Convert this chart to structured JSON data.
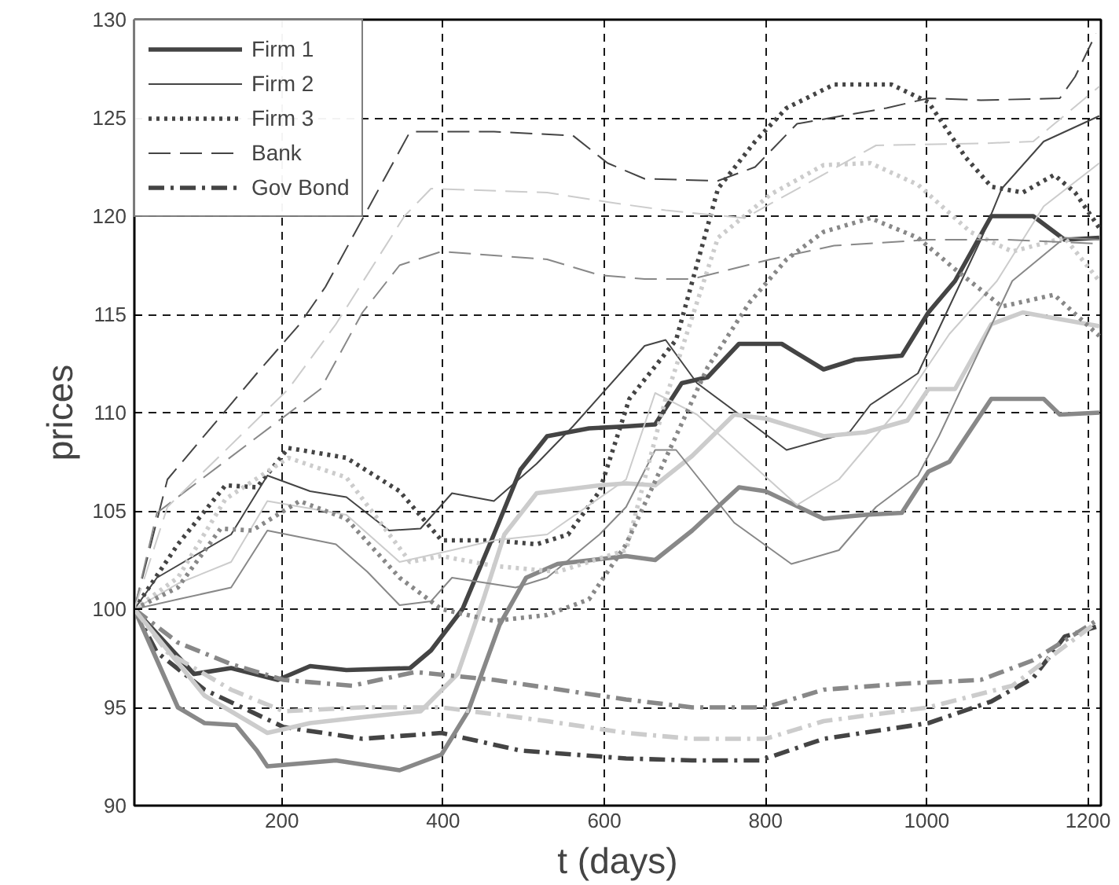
{
  "chart_data": {
    "type": "line",
    "xlabel": "t (days)",
    "ylabel": "prices",
    "xlim": [
      17,
      1216
    ],
    "ylim": [
      90,
      130
    ],
    "xticks": [
      200,
      400,
      600,
      800,
      1000,
      1200
    ],
    "yticks": [
      90,
      95,
      100,
      105,
      110,
      115,
      120,
      125,
      130
    ],
    "grid": true,
    "legend": "top left",
    "marker": "none",
    "series": [
      {
        "name": "Firm 1",
        "color": "#444444",
        "line_style": "solid",
        "x": [
          17,
          91,
          137,
          195,
          235,
          280,
          359,
          385,
          424,
          463,
          496,
          529,
          581,
          627,
          663,
          696,
          728,
          767,
          820,
          872,
          911,
          969,
          1002,
          1035,
          1080,
          1132,
          1171,
          1214
        ],
        "values": [
          100,
          96.7,
          97.0,
          96.4,
          97.1,
          96.9,
          97.0,
          97.9,
          100,
          103.8,
          107.1,
          108.8,
          109.2,
          109.3,
          109.4,
          111.5,
          111.8,
          113.5,
          113.5,
          112.2,
          112.7,
          112.9,
          115.1,
          116.7,
          120,
          120,
          118.8,
          118.9
        ]
      },
      {
        "name": "Firm 2",
        "color": "#444444",
        "line_style": "solid",
        "x": [
          17,
          45,
          137,
          182,
          235,
          280,
          333,
          372,
          411,
          463,
          516,
          561,
          650,
          676,
          715,
          761,
          826,
          904,
          930,
          989,
          1067,
          1093,
          1145,
          1214
        ],
        "values": [
          100,
          101.6,
          103.8,
          106.8,
          106,
          105.7,
          104,
          104.1,
          105.9,
          105.5,
          107.4,
          109.3,
          113.4,
          113.7,
          111.5,
          110.1,
          108.1,
          109,
          110.4,
          112,
          118.8,
          121.4,
          123.8,
          125.1
        ]
      },
      {
        "name": "Firm 3",
        "color": "#444444",
        "line_style": "dotted",
        "x": [
          17,
          71,
          130,
          169,
          208,
          280,
          346,
          398,
          463,
          516,
          555,
          594,
          631,
          689,
          741,
          787,
          826,
          885,
          956,
          1002,
          1048,
          1080,
          1119,
          1158,
          1184,
          1214
        ],
        "values": [
          100,
          103.3,
          106.3,
          106.2,
          108.2,
          107.7,
          106,
          103.5,
          103.5,
          103.3,
          103.8,
          106,
          110.7,
          113.7,
          121.4,
          123.8,
          125.5,
          126.7,
          126.7,
          125.8,
          123,
          121.5,
          121.2,
          122.1,
          121.2,
          119.4
        ]
      },
      {
        "name": "Bank",
        "color": "#444444",
        "line_style": "dashed",
        "x": [
          17,
          58,
          169,
          222,
          254,
          359,
          463,
          561,
          604,
          650,
          741,
          787,
          839,
          950,
          1002,
          1067,
          1165,
          1184,
          1210
        ],
        "values": [
          100,
          106.6,
          112,
          114.5,
          116.4,
          124.3,
          124.3,
          124.1,
          122.7,
          121.9,
          121.8,
          122.5,
          124.7,
          125.5,
          126,
          125.9,
          126,
          127.1,
          129.3
        ]
      },
      {
        "name": "Gov Bond",
        "color": "#444444",
        "line_style": "dashdot",
        "x": [
          17,
          45,
          104,
          202,
          300,
          398,
          496,
          627,
          709,
          793,
          872,
          1002,
          1080,
          1132,
          1171,
          1210
        ],
        "values": [
          100,
          97.8,
          95.9,
          94,
          93.4,
          93.7,
          92.8,
          92.4,
          92.3,
          92.3,
          93.4,
          94.2,
          95.3,
          96.5,
          98.6,
          99.1
        ]
      },
      {
        "color": "#888888",
        "line_style": "solid",
        "x": [
          17,
          71,
          104,
          143,
          169,
          182,
          267,
          346,
          398,
          431,
          470,
          503,
          542,
          627,
          663,
          709,
          767,
          800,
          872,
          924,
          969,
          1002,
          1028,
          1080,
          1145,
          1165,
          1214
        ],
        "values": [
          100,
          95,
          94.2,
          94.1,
          92.8,
          92,
          92.3,
          91.8,
          92.6,
          94.8,
          99.2,
          101.6,
          102.3,
          102.7,
          102.5,
          104,
          106.2,
          106,
          104.6,
          104.8,
          104.9,
          107,
          107.5,
          110.7,
          110.7,
          109.9,
          110
        ]
      },
      {
        "color": "#cccccc",
        "line_style": "solid",
        "x": [
          17,
          104,
          182,
          235,
          300,
          372,
          418,
          450,
          476,
          516,
          594,
          627,
          663,
          709,
          761,
          800,
          872,
          924,
          976,
          1002,
          1035,
          1080,
          1119,
          1159,
          1214
        ],
        "values": [
          100,
          95.6,
          93.7,
          94.2,
          94.5,
          94.8,
          96.7,
          100.5,
          103.8,
          105.9,
          106.3,
          106.4,
          106.3,
          107.8,
          109.9,
          109.7,
          108.8,
          109,
          109.6,
          111.2,
          111.2,
          114.5,
          115.1,
          114.8,
          114.4
        ]
      },
      {
        "color": "#888888",
        "line_style": "solid",
        "x": [
          17,
          71,
          137,
          182,
          267,
          306,
          346,
          385,
          411,
          490,
          529,
          594,
          627,
          663,
          689,
          761,
          832,
          891,
          937,
          989,
          1015,
          1106,
          1171,
          1214
        ],
        "values": [
          100,
          100.5,
          101.1,
          104,
          103.3,
          101.9,
          100.2,
          100.4,
          101.6,
          101.1,
          101.6,
          103.8,
          105.2,
          108.1,
          108.1,
          104.4,
          102.3,
          103,
          105.2,
          106.8,
          108.8,
          116.7,
          118.9,
          118.8
        ]
      },
      {
        "color": "#cccccc",
        "line_style": "solid",
        "x": [
          17,
          71,
          137,
          182,
          280,
          346,
          411,
          463,
          529,
          627,
          663,
          715,
          774,
          839,
          891,
          969,
          1028,
          1087,
          1145,
          1214
        ],
        "values": [
          100,
          101.3,
          102.4,
          105.5,
          104.8,
          102.4,
          103,
          103.5,
          103.8,
          106.6,
          111,
          109.9,
          107.7,
          105.3,
          106.6,
          110.4,
          114,
          116.7,
          120.5,
          122.7
        ]
      },
      {
        "color": "#cccccc",
        "line_style": "dotted",
        "x": [
          17,
          71,
          130,
          208,
          280,
          359,
          398,
          463,
          542,
          627,
          676,
          741,
          806,
          872,
          930,
          989,
          1054,
          1106,
          1171,
          1214
        ],
        "values": [
          100,
          101.6,
          105.6,
          107.7,
          106.7,
          102.4,
          102.7,
          102.2,
          101.9,
          103,
          110.7,
          118.9,
          121.1,
          122.6,
          122.7,
          121.6,
          119.2,
          118.2,
          118.9,
          116.7
        ]
      },
      {
        "color": "#888888",
        "line_style": "dotted",
        "x": [
          17,
          71,
          124,
          163,
          222,
          280,
          346,
          398,
          463,
          529,
          581,
          627,
          728,
          780,
          826,
          872,
          930,
          989,
          1035,
          1093,
          1158,
          1214
        ],
        "values": [
          100,
          101.1,
          104.1,
          104,
          105.5,
          104.6,
          101.6,
          100,
          99.4,
          99.7,
          100.5,
          103.3,
          112.3,
          115.6,
          117.8,
          119.2,
          119.9,
          118.9,
          117.3,
          115.4,
          116,
          113.9
        ]
      },
      {
        "color": "#888888",
        "line_style": "dashed",
        "x": [
          17,
          45,
          248,
          300,
          346,
          398,
          529,
          594,
          650,
          709,
          806,
          885,
          1002,
          1100,
          1214
        ],
        "values": [
          100,
          104.9,
          111.2,
          115.1,
          117.5,
          118.2,
          117.8,
          117,
          116.8,
          116.8,
          117.8,
          118.5,
          118.8,
          118.8,
          118.6
        ]
      },
      {
        "color": "#cccccc",
        "line_style": "dashed",
        "x": [
          17,
          58,
          208,
          267,
          352,
          385,
          529,
          607,
          676,
          774,
          937,
          1067,
          1132,
          1214
        ],
        "values": [
          100,
          105.2,
          111.2,
          114.5,
          120,
          121.4,
          121.2,
          120.7,
          120.3,
          119.9,
          123.6,
          123.7,
          123.8,
          126.6
        ]
      },
      {
        "color": "#888888",
        "line_style": "dashdot",
        "x": [
          17,
          71,
          137,
          202,
          287,
          365,
          463,
          627,
          709,
          800,
          872,
          969,
          1067,
          1132,
          1210
        ],
        "values": [
          100,
          98.3,
          97.2,
          96.4,
          96.1,
          96.8,
          96.4,
          95.4,
          95,
          95,
          95.9,
          96.2,
          96.4,
          97.4,
          99.4
        ]
      },
      {
        "color": "#cccccc",
        "line_style": "dashdot",
        "x": [
          17,
          58,
          137,
          202,
          300,
          398,
          529,
          627,
          709,
          800,
          872,
          1002,
          1106,
          1210
        ],
        "values": [
          100,
          97.8,
          95.9,
          94.8,
          95,
          95,
          94.3,
          93.7,
          93.4,
          93.4,
          94.3,
          95,
          96.1,
          99.3
        ]
      }
    ]
  }
}
